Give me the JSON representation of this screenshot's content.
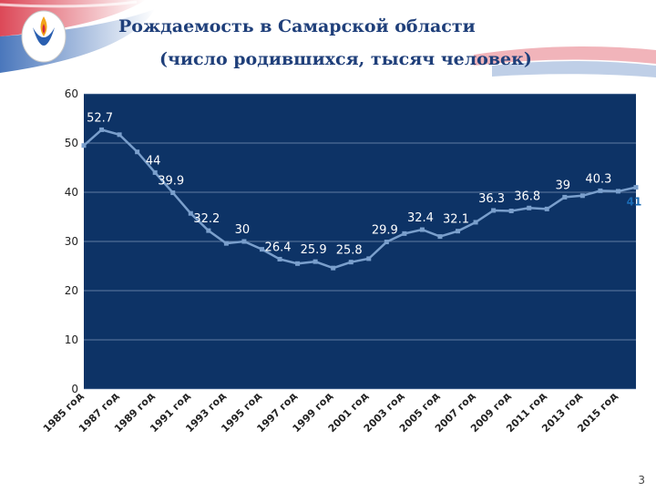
{
  "header": {
    "title_line1": "Рождаемость в Самарской области",
    "title_line2": "(число родившихся, тысяч человек)",
    "page_number": "3"
  },
  "colors": {
    "plot_background": "#0d3366",
    "series_line": "#7a9fcc",
    "axis_text": "#222222",
    "data_label": "#ffffff",
    "last_label": "#1a6bb5",
    "title": "#1f3f7a"
  },
  "chart_data": {
    "type": "line",
    "title": "Рождаемость в Самарской области (число родившихся, тысяч человек)",
    "xlabel": "",
    "ylabel": "",
    "ylim": [
      0,
      60
    ],
    "yticks": [
      "0",
      "10",
      "20",
      "30",
      "40",
      "50",
      "60"
    ],
    "grid": true,
    "legend": "none",
    "x": [
      1985,
      1986,
      1987,
      1988,
      1989,
      1990,
      1991,
      1992,
      1993,
      1994,
      1995,
      1996,
      1997,
      1998,
      1999,
      2000,
      2001,
      2002,
      2003,
      2004,
      2005,
      2006,
      2007,
      2008,
      2009,
      2010,
      2011,
      2012,
      2013,
      2014,
      2015,
      2016
    ],
    "x_tick_labels": [
      "1985 год",
      "1987 год",
      "1989 год",
      "1991 год",
      "1993 год",
      "1995 год",
      "1997 год",
      "1999 год",
      "2001 год",
      "2003 год",
      "2005 год",
      "2007 год",
      "2009 год",
      "2011 год",
      "2013 год",
      "2015 год"
    ],
    "series": [
      {
        "values": [
          49.5,
          52.7,
          51.7,
          48.2,
          44.0,
          39.9,
          35.7,
          32.2,
          29.6,
          30.0,
          28.4,
          26.4,
          25.5,
          25.9,
          24.6,
          25.8,
          26.5,
          29.9,
          31.6,
          32.4,
          31.0,
          32.1,
          33.9,
          36.3,
          36.2,
          36.8,
          36.6,
          39.0,
          39.3,
          40.3,
          40.2,
          41.0
        ]
      }
    ],
    "data_labels": [
      {
        "index": 1,
        "text": "52.7"
      },
      {
        "index": 4,
        "text": "44"
      },
      {
        "index": 5,
        "text": "39.9"
      },
      {
        "index": 7,
        "text": "32.2"
      },
      {
        "index": 9,
        "text": "30"
      },
      {
        "index": 11,
        "text": "26.4"
      },
      {
        "index": 13,
        "text": "25.9"
      },
      {
        "index": 15,
        "text": "25.8"
      },
      {
        "index": 17,
        "text": "29.9"
      },
      {
        "index": 19,
        "text": "32.4"
      },
      {
        "index": 21,
        "text": "32.1"
      },
      {
        "index": 23,
        "text": "36.3"
      },
      {
        "index": 25,
        "text": "36.8"
      },
      {
        "index": 27,
        "text": "39"
      },
      {
        "index": 29,
        "text": "40.3"
      },
      {
        "index": 31,
        "text": "41"
      }
    ]
  }
}
